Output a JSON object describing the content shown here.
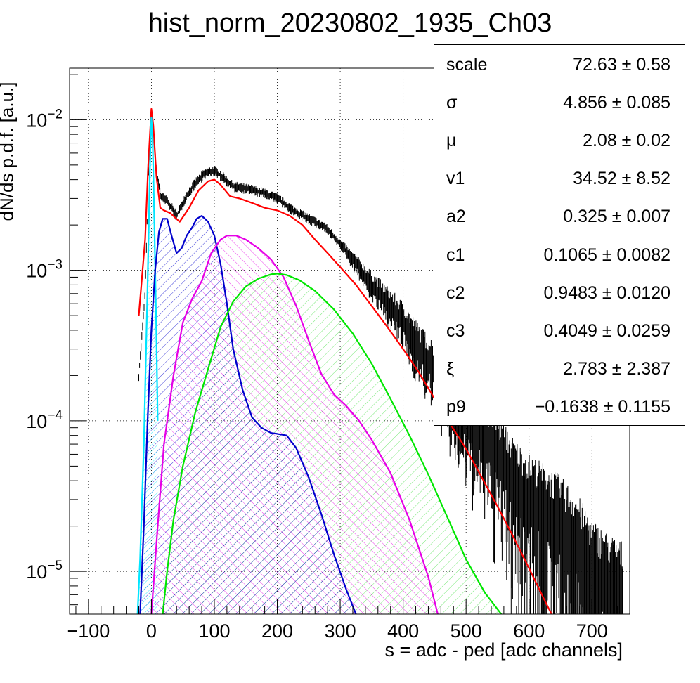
{
  "title": "hist_norm_20230802_1935_Ch03",
  "chart_data": {
    "type": "line",
    "title": "hist_norm_20230802_1935_Ch03",
    "xlabel": "s = adc - ped [adc channels]",
    "ylabel": "dN/ds p.d.f. [a.u.]",
    "xlim": [
      -130,
      760
    ],
    "ylim": [
      5.2e-06,
      0.022
    ],
    "yscale": "log",
    "grid": true,
    "x_ticks": [
      "-100",
      "0",
      "100",
      "200",
      "300",
      "400",
      "500",
      "600",
      "700"
    ],
    "y_ticks": [
      "10^-5",
      "10^-4",
      "10^-3",
      "10^-2"
    ],
    "data_histogram": {
      "name": "data",
      "x": [
        -20,
        -10,
        -5,
        0,
        3,
        8,
        15,
        25,
        40,
        55,
        70,
        85,
        100,
        115,
        130,
        150,
        175,
        200,
        225,
        250,
        275,
        300,
        325,
        350,
        375,
        400,
        425,
        450,
        475,
        500,
        525,
        550,
        575,
        600,
        625,
        650,
        675,
        700,
        725,
        750
      ],
      "y": [
        0.0002,
        0.0007,
        0.004,
        0.0115,
        0.009,
        0.0045,
        0.0031,
        0.0029,
        0.0023,
        0.0031,
        0.0038,
        0.0044,
        0.0046,
        0.0041,
        0.0036,
        0.0035,
        0.0033,
        0.003,
        0.0025,
        0.0022,
        0.00195,
        0.0015,
        0.0011,
        0.0008,
        0.0006,
        0.00045,
        0.0003,
        0.00022,
        0.00014,
        0.0001,
        8e-05,
        6e-05,
        4e-05,
        3e-05,
        2.5e-05,
        2e-05,
        1.5e-05,
        1e-05,
        8e-06,
        7e-06
      ]
    },
    "series": [
      {
        "color": "#ff0000",
        "x": [
          -20,
          -10,
          -5,
          0,
          3,
          8,
          14,
          20,
          30,
          45,
          60,
          75,
          90,
          100,
          110,
          125,
          140,
          160,
          180,
          200,
          220,
          240,
          260,
          280,
          300,
          325,
          350,
          375,
          400,
          425,
          450,
          475,
          500,
          525,
          550,
          575,
          600,
          625,
          640
        ],
        "y": [
          0.0005,
          0.0016,
          0.005,
          0.0118,
          0.0092,
          0.0042,
          0.0026,
          0.0025,
          0.0024,
          0.0021,
          0.0026,
          0.0034,
          0.0039,
          0.004,
          0.0037,
          0.0031,
          0.003,
          0.0028,
          0.0026,
          0.0025,
          0.0023,
          0.002,
          0.0016,
          0.0013,
          0.00105,
          0.0008,
          0.00058,
          0.00042,
          0.0003,
          0.00021,
          0.00014,
          9.5e-05,
          6.5e-05,
          4.2e-05,
          2.7e-05,
          1.7e-05,
          1.05e-05,
          6.4e-06,
          4.8e-06
        ]
      },
      {
        "color": "#00e5ff",
        "x": [
          -22,
          -18,
          -12,
          -6,
          -2,
          0,
          2,
          5,
          8,
          10
        ],
        "y": [
          5.2e-06,
          1.2e-05,
          7e-05,
          0.0008,
          0.0055,
          0.0103,
          0.0075,
          0.0018,
          0.00035,
          0.0001
        ]
      },
      {
        "color": "#0000cc",
        "x": [
          -18,
          -12,
          -6,
          0,
          6,
          12,
          18,
          25,
          32,
          40,
          48,
          56,
          64,
          72,
          80,
          90,
          100,
          110,
          120,
          130,
          145,
          160,
          175,
          190,
          200,
          215,
          230,
          250,
          270,
          290,
          310,
          325
        ],
        "y": [
          5.2e-06,
          2e-05,
          0.0001,
          0.0004,
          0.001,
          0.0018,
          0.0022,
          0.0022,
          0.0017,
          0.0013,
          0.0014,
          0.0017,
          0.0019,
          0.0022,
          0.0023,
          0.0021,
          0.0017,
          0.0011,
          0.0006,
          0.0003,
          0.00016,
          0.000105,
          9e-05,
          8.3e-05,
          8.2e-05,
          8e-05,
          6.6e-05,
          4.2e-05,
          2.4e-05,
          1.3e-05,
          7.5e-06,
          5.2e-06
        ]
      },
      {
        "color": "#e600e6",
        "x": [
          0,
          10,
          20,
          35,
          50,
          65,
          80,
          95,
          110,
          120,
          135,
          150,
          170,
          190,
          210,
          230,
          250,
          270,
          290,
          310,
          330,
          350,
          380,
          410,
          440,
          455
        ],
        "y": [
          5.2e-06,
          2e-05,
          7e-05,
          0.0002,
          0.00045,
          0.00065,
          0.00085,
          0.0013,
          0.0016,
          0.0017,
          0.0017,
          0.0016,
          0.0014,
          0.00118,
          0.0009,
          0.00058,
          0.00034,
          0.000205,
          0.00015,
          0.000125,
          0.0001,
          7.5e-05,
          4.5e-05,
          2.2e-05,
          9.2e-06,
          5.2e-06
        ]
      },
      {
        "color": "#00e600",
        "x": [
          18,
          25,
          35,
          50,
          70,
          90,
          110,
          130,
          150,
          170,
          190,
          200,
          215,
          235,
          260,
          290,
          320,
          350,
          380,
          410,
          440,
          470,
          500,
          530,
          556
        ],
        "y": [
          5.2e-06,
          1e-05,
          2.2e-05,
          5e-05,
          0.000115,
          0.00022,
          0.00042,
          0.00062,
          0.00078,
          0.00088,
          0.00094,
          0.00095,
          0.00093,
          0.00086,
          0.00073,
          0.00055,
          0.00038,
          0.00024,
          0.00014,
          8e-05,
          4.4e-05,
          2.3e-05,
          1.2e-05,
          7.2e-06,
          5.2e-06
        ]
      }
    ],
    "stats": [
      {
        "name": "scale",
        "value": "72.63 ± 0.58"
      },
      {
        "name": "σ",
        "value": "4.856 ± 0.085"
      },
      {
        "name": "μ",
        "value": "2.08 ± 0.02"
      },
      {
        "name": "v1",
        "value": "34.52 ± 8.52"
      },
      {
        "name": "a2",
        "value": "0.325 ± 0.007"
      },
      {
        "name": "c1",
        "value": "0.1065 ± 0.0082"
      },
      {
        "name": "c2",
        "value": "0.9483 ± 0.0120"
      },
      {
        "name": "c3",
        "value": "0.4049 ± 0.0259"
      },
      {
        "name": "ξ",
        "value": "2.783 ± 2.387"
      },
      {
        "name": "p9",
        "value": "−0.1638 ± 0.1155"
      }
    ]
  }
}
